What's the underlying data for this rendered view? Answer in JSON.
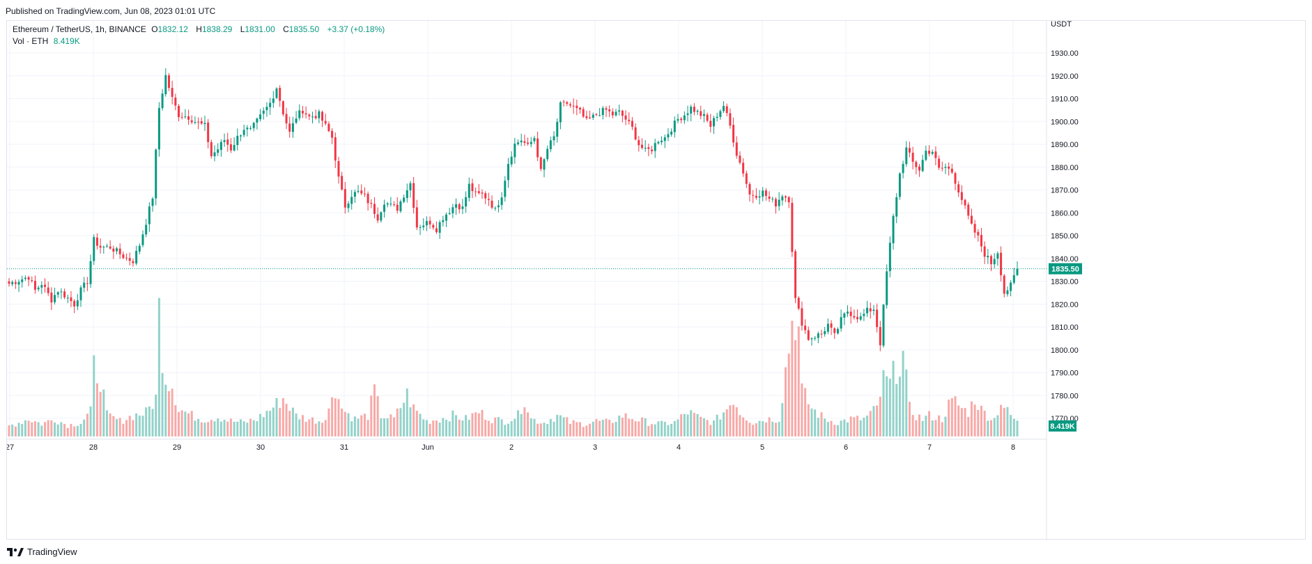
{
  "published": "Published on TradingView.com, Jun 08, 2023 01:01 UTC",
  "legend": {
    "symbol": "Ethereum / TetherUS, 1h, BINANCE",
    "open_label": "O",
    "open": "1832.12",
    "high_label": "H",
    "high": "1838.29",
    "low_label": "L",
    "low": "1831.00",
    "close_label": "C",
    "close": "1835.50",
    "change": "+3.37 (+0.18%)",
    "vol_label": "Vol · ETH",
    "vol_value": "8.419K"
  },
  "footer": {
    "logo_text": "TradingView",
    "logo_icon": "tradingview-logo-icon"
  },
  "colors": {
    "up": "#089981",
    "down": "#f23645",
    "vol_up": "#92d2c9",
    "vol_down": "#f7a9a7",
    "grid": "#f0f3fa"
  },
  "chart_data": {
    "type": "candlestick",
    "currency": "USDT",
    "ylim": [
      1760,
      1945
    ],
    "y_ticks": [
      1770,
      1780,
      1790,
      1800,
      1810,
      1820,
      1830,
      1840,
      1850,
      1860,
      1870,
      1880,
      1890,
      1900,
      1910,
      1920,
      1930
    ],
    "y_tick_labels": [
      "1770.00",
      "1780.00",
      "1790.00",
      "1800.00",
      "1810.00",
      "1820.00",
      "1830.00",
      "1840.00",
      "1850.00",
      "1860.00",
      "1870.00",
      "1880.00",
      "1890.00",
      "1900.00",
      "1910.00",
      "1920.00",
      "1930.00"
    ],
    "x_labels": [
      "27",
      "28",
      "29",
      "30",
      "31",
      "Jun",
      "2",
      "3",
      "4",
      "5",
      "6",
      "7",
      "8"
    ],
    "last_price": "1835.50",
    "last_volume": "8.419K",
    "close_path": [
      [
        0,
        1829
      ],
      [
        6,
        1832
      ],
      [
        8,
        1826
      ],
      [
        10,
        1829
      ],
      [
        13,
        1822
      ],
      [
        15,
        1826
      ],
      [
        17,
        1824
      ],
      [
        20,
        1820
      ],
      [
        22,
        1826
      ],
      [
        24,
        1830
      ],
      [
        26,
        1848
      ],
      [
        28,
        1845
      ],
      [
        31,
        1845
      ],
      [
        33,
        1843
      ],
      [
        36,
        1840
      ],
      [
        38,
        1839
      ],
      [
        40,
        1846
      ],
      [
        42,
        1856
      ],
      [
        44,
        1867
      ],
      [
        46,
        1906
      ],
      [
        48,
        1920
      ],
      [
        50,
        1910
      ],
      [
        52,
        1903
      ],
      [
        55,
        1902
      ],
      [
        57,
        1900
      ],
      [
        60,
        1898
      ],
      [
        62,
        1885
      ],
      [
        64,
        1888
      ],
      [
        66,
        1892
      ],
      [
        68,
        1888
      ],
      [
        70,
        1893
      ],
      [
        72,
        1897
      ],
      [
        74,
        1896
      ],
      [
        76,
        1900
      ],
      [
        78,
        1904
      ],
      [
        80,
        1908
      ],
      [
        82,
        1915
      ],
      [
        84,
        1904
      ],
      [
        86,
        1895
      ],
      [
        88,
        1902
      ],
      [
        90,
        1905
      ],
      [
        92,
        1902
      ],
      [
        95,
        1903
      ],
      [
        97,
        1898
      ],
      [
        99,
        1893
      ],
      [
        101,
        1875
      ],
      [
        103,
        1863
      ],
      [
        105,
        1868
      ],
      [
        107,
        1869
      ],
      [
        109,
        1867
      ],
      [
        111,
        1863
      ],
      [
        113,
        1858
      ],
      [
        115,
        1865
      ],
      [
        117,
        1863
      ],
      [
        119,
        1862
      ],
      [
        121,
        1868
      ],
      [
        123,
        1873
      ],
      [
        125,
        1854
      ],
      [
        127,
        1855
      ],
      [
        129,
        1856
      ],
      [
        131,
        1853
      ],
      [
        133,
        1858
      ],
      [
        135,
        1861
      ],
      [
        137,
        1864
      ],
      [
        139,
        1862
      ],
      [
        141,
        1872
      ],
      [
        143,
        1868
      ],
      [
        145,
        1868
      ],
      [
        147,
        1866
      ],
      [
        149,
        1861
      ],
      [
        151,
        1868
      ],
      [
        153,
        1882
      ],
      [
        155,
        1890
      ],
      [
        157,
        1892
      ],
      [
        159,
        1889
      ],
      [
        161,
        1893
      ],
      [
        163,
        1878
      ],
      [
        165,
        1888
      ],
      [
        167,
        1893
      ],
      [
        169,
        1907
      ],
      [
        171,
        1908
      ],
      [
        173,
        1906
      ],
      [
        175,
        1904
      ],
      [
        177,
        1900
      ],
      [
        179,
        1902
      ],
      [
        181,
        1904
      ],
      [
        183,
        1905
      ],
      [
        185,
        1903
      ],
      [
        187,
        1904
      ],
      [
        189,
        1901
      ],
      [
        191,
        1897
      ],
      [
        193,
        1890
      ],
      [
        195,
        1887
      ],
      [
        197,
        1888
      ],
      [
        199,
        1892
      ],
      [
        201,
        1893
      ],
      [
        203,
        1897
      ],
      [
        205,
        1901
      ],
      [
        207,
        1903
      ],
      [
        209,
        1906
      ],
      [
        211,
        1904
      ],
      [
        213,
        1902
      ],
      [
        215,
        1898
      ],
      [
        217,
        1903
      ],
      [
        219,
        1907
      ],
      [
        221,
        1898
      ],
      [
        223,
        1886
      ],
      [
        225,
        1878
      ],
      [
        227,
        1868
      ],
      [
        229,
        1868
      ],
      [
        231,
        1869
      ],
      [
        233,
        1866
      ],
      [
        235,
        1864
      ],
      [
        237,
        1868
      ],
      [
        239,
        1866
      ],
      [
        241,
        1822
      ],
      [
        243,
        1812
      ],
      [
        245,
        1805
      ],
      [
        247,
        1806
      ],
      [
        249,
        1807
      ],
      [
        251,
        1811
      ],
      [
        253,
        1806
      ],
      [
        255,
        1813
      ],
      [
        257,
        1817
      ],
      [
        259,
        1815
      ],
      [
        261,
        1814
      ],
      [
        263,
        1817
      ],
      [
        265,
        1818
      ],
      [
        267,
        1803
      ],
      [
        269,
        1834
      ],
      [
        271,
        1858
      ],
      [
        273,
        1877
      ],
      [
        275,
        1888
      ],
      [
        277,
        1882
      ],
      [
        279,
        1879
      ],
      [
        281,
        1887
      ],
      [
        283,
        1887
      ],
      [
        285,
        1879
      ],
      [
        287,
        1880
      ],
      [
        289,
        1878
      ],
      [
        291,
        1870
      ],
      [
        293,
        1862
      ],
      [
        295,
        1854
      ],
      [
        297,
        1849
      ],
      [
        299,
        1842
      ],
      [
        301,
        1838
      ],
      [
        303,
        1843
      ],
      [
        305,
        1825
      ],
      [
        307,
        1828
      ],
      [
        309,
        1835.5
      ]
    ],
    "volume_path": [
      [
        0,
        1.5
      ],
      [
        6,
        2.5
      ],
      [
        10,
        1.8
      ],
      [
        14,
        2.5
      ],
      [
        18,
        1.6
      ],
      [
        22,
        2.0
      ],
      [
        25,
        3.5
      ],
      [
        26,
        9.8
      ],
      [
        28,
        8.5
      ],
      [
        30,
        3.0
      ],
      [
        34,
        2.2
      ],
      [
        38,
        3.0
      ],
      [
        42,
        3.4
      ],
      [
        45,
        5.5
      ],
      [
        46,
        18.0
      ],
      [
        47,
        12.0
      ],
      [
        48,
        8.5
      ],
      [
        50,
        7.5
      ],
      [
        52,
        4.0
      ],
      [
        56,
        3.0
      ],
      [
        60,
        2.4
      ],
      [
        64,
        2.8
      ],
      [
        68,
        2.2
      ],
      [
        72,
        2.0
      ],
      [
        76,
        2.5
      ],
      [
        80,
        3.8
      ],
      [
        84,
        5.5
      ],
      [
        88,
        3.0
      ],
      [
        92,
        2.5
      ],
      [
        96,
        2.2
      ],
      [
        100,
        6.0
      ],
      [
        101,
        7.0
      ],
      [
        102,
        4.0
      ],
      [
        106,
        2.5
      ],
      [
        110,
        3.0
      ],
      [
        112,
        6.5
      ],
      [
        114,
        3.0
      ],
      [
        118,
        2.5
      ],
      [
        122,
        6.0
      ],
      [
        124,
        4.0
      ],
      [
        128,
        2.2
      ],
      [
        132,
        2.5
      ],
      [
        136,
        3.0
      ],
      [
        140,
        2.5
      ],
      [
        144,
        3.5
      ],
      [
        148,
        2.5
      ],
      [
        152,
        2.2
      ],
      [
        156,
        3.0
      ],
      [
        158,
        5.5
      ],
      [
        160,
        2.5
      ],
      [
        164,
        2.0
      ],
      [
        168,
        3.0
      ],
      [
        172,
        2.0
      ],
      [
        176,
        1.8
      ],
      [
        180,
        2.2
      ],
      [
        184,
        2.0
      ],
      [
        188,
        3.0
      ],
      [
        192,
        2.5
      ],
      [
        196,
        2.0
      ],
      [
        200,
        1.8
      ],
      [
        204,
        2.0
      ],
      [
        208,
        3.5
      ],
      [
        212,
        2.5
      ],
      [
        216,
        2.0
      ],
      [
        220,
        4.0
      ],
      [
        222,
        5.5
      ],
      [
        224,
        3.5
      ],
      [
        228,
        2.0
      ],
      [
        232,
        2.5
      ],
      [
        236,
        2.5
      ],
      [
        240,
        16.5
      ],
      [
        241,
        17.5
      ],
      [
        242,
        15.0
      ],
      [
        243,
        6.5
      ],
      [
        246,
        4.0
      ],
      [
        250,
        2.5
      ],
      [
        254,
        2.0
      ],
      [
        258,
        2.5
      ],
      [
        262,
        2.5
      ],
      [
        266,
        4.0
      ],
      [
        268,
        8.0
      ],
      [
        270,
        7.5
      ],
      [
        272,
        10.0
      ],
      [
        274,
        11.5
      ],
      [
        276,
        4.0
      ],
      [
        278,
        3.0
      ],
      [
        280,
        2.5
      ],
      [
        282,
        3.0
      ],
      [
        286,
        2.5
      ],
      [
        288,
        4.5
      ],
      [
        290,
        5.0
      ],
      [
        292,
        4.0
      ],
      [
        294,
        3.5
      ],
      [
        296,
        5.5
      ],
      [
        298,
        3.8
      ],
      [
        300,
        3.0
      ],
      [
        302,
        2.5
      ],
      [
        304,
        5.0
      ],
      [
        306,
        3.5
      ],
      [
        309,
        2.0
      ]
    ],
    "volume_ylim": [
      0,
      30
    ]
  }
}
